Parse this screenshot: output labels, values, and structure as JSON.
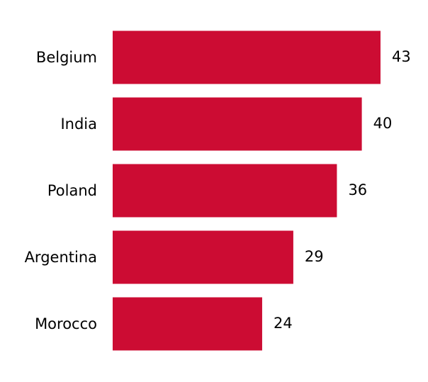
{
  "chart_data": {
    "type": "bar",
    "orientation": "horizontal",
    "categories": [
      "Belgium",
      "India",
      "Poland",
      "Argentina",
      "Morocco"
    ],
    "values": [
      43,
      40,
      36,
      29,
      24
    ],
    "color": "#cc0c33"
  }
}
